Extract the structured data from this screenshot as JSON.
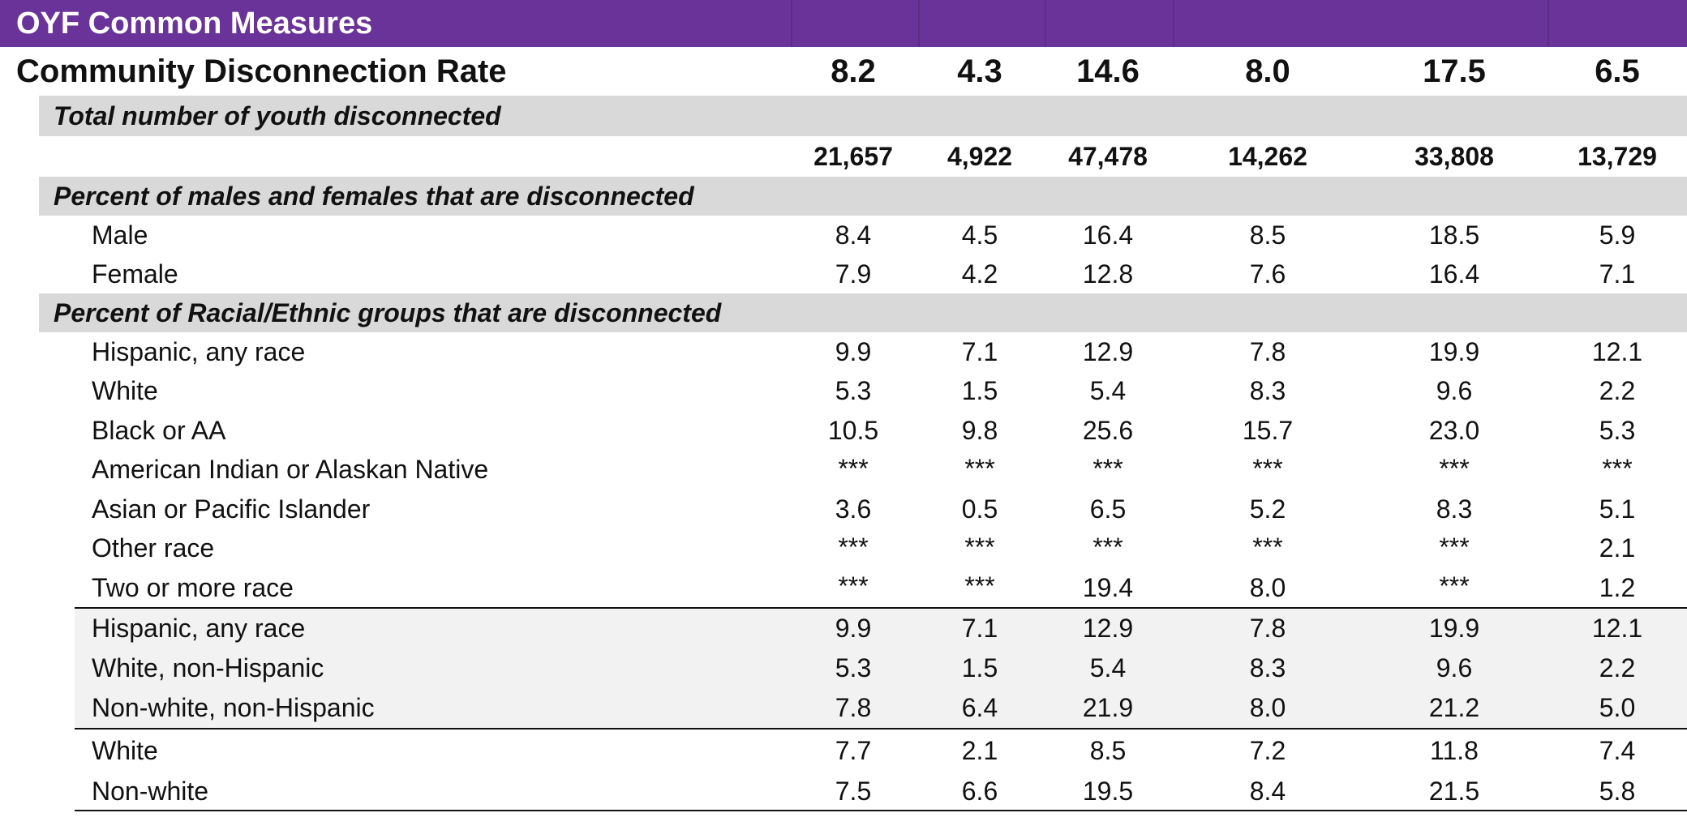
{
  "banner": {
    "title": "OYF Common Measures"
  },
  "rate": {
    "label": "Community Disconnection Rate",
    "values": [
      "8.2",
      "4.3",
      "14.6",
      "8.0",
      "17.5",
      "6.5"
    ]
  },
  "total": {
    "header": "Total number of youth disconnected",
    "values": [
      "21,657",
      "4,922",
      "47,478",
      "14,262",
      "33,808",
      "13,729"
    ]
  },
  "gender": {
    "header": "Percent of males and females that are disconnected",
    "rows": [
      {
        "label": "Male",
        "values": [
          "8.4",
          "4.5",
          "16.4",
          "8.5",
          "18.5",
          "5.9"
        ]
      },
      {
        "label": "Female",
        "values": [
          "7.9",
          "4.2",
          "12.8",
          "7.6",
          "16.4",
          "7.1"
        ]
      }
    ]
  },
  "race": {
    "header": "Percent of Racial/Ethnic groups that are disconnected",
    "rows": [
      {
        "label": "Hispanic, any race",
        "values": [
          "9.9",
          "7.1",
          "12.9",
          "7.8",
          "19.9",
          "12.1"
        ]
      },
      {
        "label": "White",
        "values": [
          "5.3",
          "1.5",
          "5.4",
          "8.3",
          "9.6",
          "2.2"
        ]
      },
      {
        "label": "Black or AA",
        "values": [
          "10.5",
          "9.8",
          "25.6",
          "15.7",
          "23.0",
          "5.3"
        ]
      },
      {
        "label": "American Indian or Alaskan Native",
        "values": [
          "***",
          "***",
          "***",
          "***",
          "***",
          "***"
        ]
      },
      {
        "label": "Asian or Pacific Islander",
        "values": [
          "3.6",
          "0.5",
          "6.5",
          "5.2",
          "8.3",
          "5.1"
        ]
      },
      {
        "label": "Other race",
        "values": [
          "***",
          "***",
          "***",
          "***",
          "***",
          "2.1"
        ]
      },
      {
        "label": "Two or more race",
        "values": [
          "***",
          "***",
          "19.4",
          "8.0",
          "***",
          "1.2"
        ]
      }
    ]
  },
  "hispanic_group": {
    "rows": [
      {
        "label": "Hispanic, any race",
        "values": [
          "9.9",
          "7.1",
          "12.9",
          "7.8",
          "19.9",
          "12.1"
        ]
      },
      {
        "label": "White, non-Hispanic",
        "values": [
          "5.3",
          "1.5",
          "5.4",
          "8.3",
          "9.6",
          "2.2"
        ]
      },
      {
        "label": "Non-white, non-Hispanic",
        "values": [
          "7.8",
          "6.4",
          "21.9",
          "8.0",
          "21.2",
          "5.0"
        ]
      }
    ]
  },
  "white_group": {
    "rows": [
      {
        "label": "White",
        "values": [
          "7.7",
          "2.1",
          "8.5",
          "7.2",
          "11.8",
          "7.4"
        ]
      },
      {
        "label": "Non-white",
        "values": [
          "7.5",
          "6.6",
          "19.5",
          "8.4",
          "21.5",
          "5.8"
        ]
      }
    ]
  }
}
